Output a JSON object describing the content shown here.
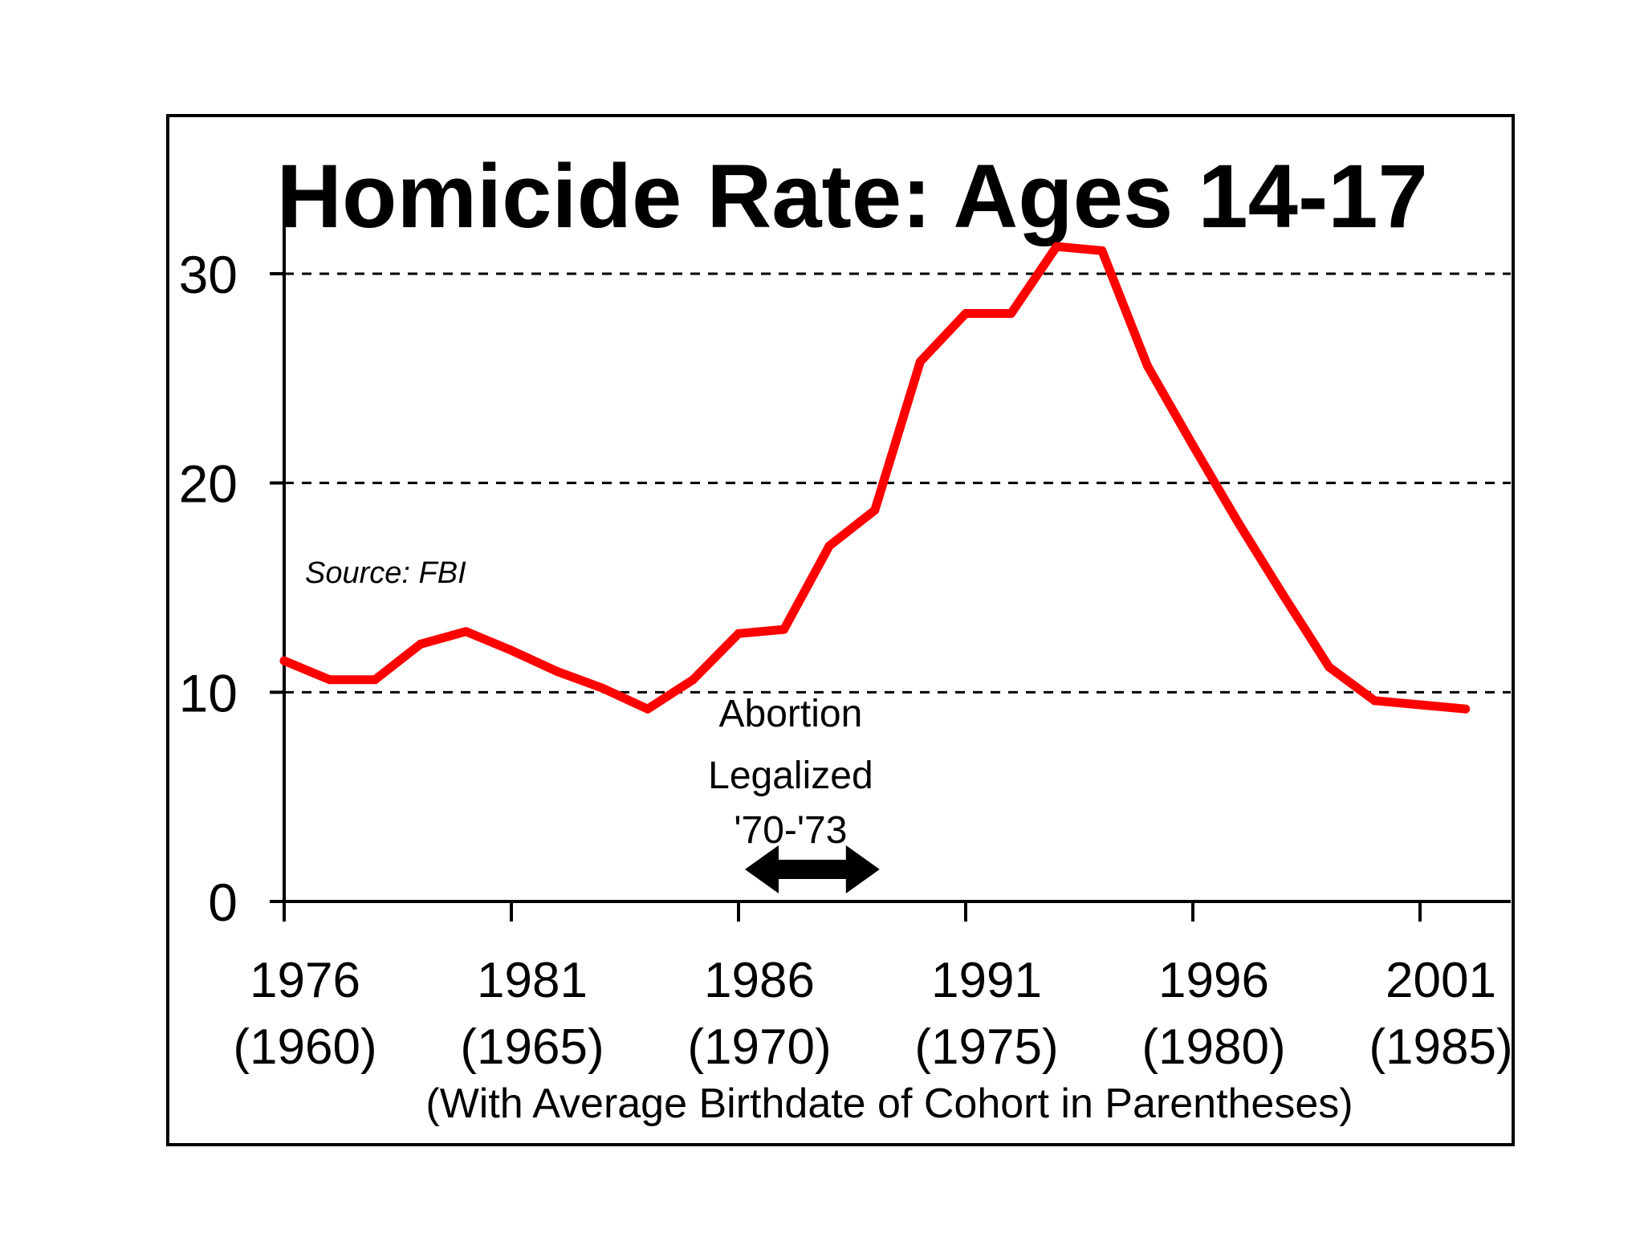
{
  "chart_data": {
    "type": "line",
    "title": "Homicide Rate: Ages 14-17",
    "xlabel": "(With Average Birthdate of Cohort in Parentheses)",
    "ylabel": "",
    "xlim": [
      1976,
      2003
    ],
    "ylim": [
      0,
      30
    ],
    "yticks": [
      0,
      10,
      20,
      30
    ],
    "grid": "dashed horizontal at 10, 20, 30",
    "x_ticks": [
      {
        "year": "1976",
        "birth": "(1960)",
        "value": 1976
      },
      {
        "year": "1981",
        "birth": "(1965)",
        "value": 1981
      },
      {
        "year": "1986",
        "birth": "(1970)",
        "value": 1986
      },
      {
        "year": "1991",
        "birth": "(1975)",
        "value": 1991
      },
      {
        "year": "1996",
        "birth": "(1980)",
        "value": 1996
      },
      {
        "year": "2001",
        "birth": "(1985)",
        "value": 2001
      }
    ],
    "source": "Source: FBI",
    "annotation": {
      "lines": [
        "Abortion",
        "Legalized",
        "'70-'73"
      ],
      "range": [
        1986,
        1989
      ]
    },
    "series": [
      {
        "name": "Homicide Rate",
        "color": "#ff0000",
        "x": [
          1976,
          1977,
          1978,
          1979,
          1980,
          1981,
          1982,
          1983,
          1984,
          1985,
          1986,
          1987,
          1988,
          1989,
          1990,
          1991,
          1992,
          1993,
          1994,
          1995,
          1996,
          1997,
          1998,
          1999,
          2000,
          2001,
          2002
        ],
        "values": [
          11.5,
          10.6,
          10.6,
          12.3,
          12.9,
          12.0,
          11.0,
          10.2,
          9.2,
          10.6,
          12.8,
          13.0,
          17.0,
          18.7,
          25.8,
          28.1,
          28.1,
          31.3,
          31.1,
          25.6,
          21.8,
          18.1,
          14.6,
          11.2,
          9.6,
          9.4,
          9.2
        ]
      }
    ]
  }
}
